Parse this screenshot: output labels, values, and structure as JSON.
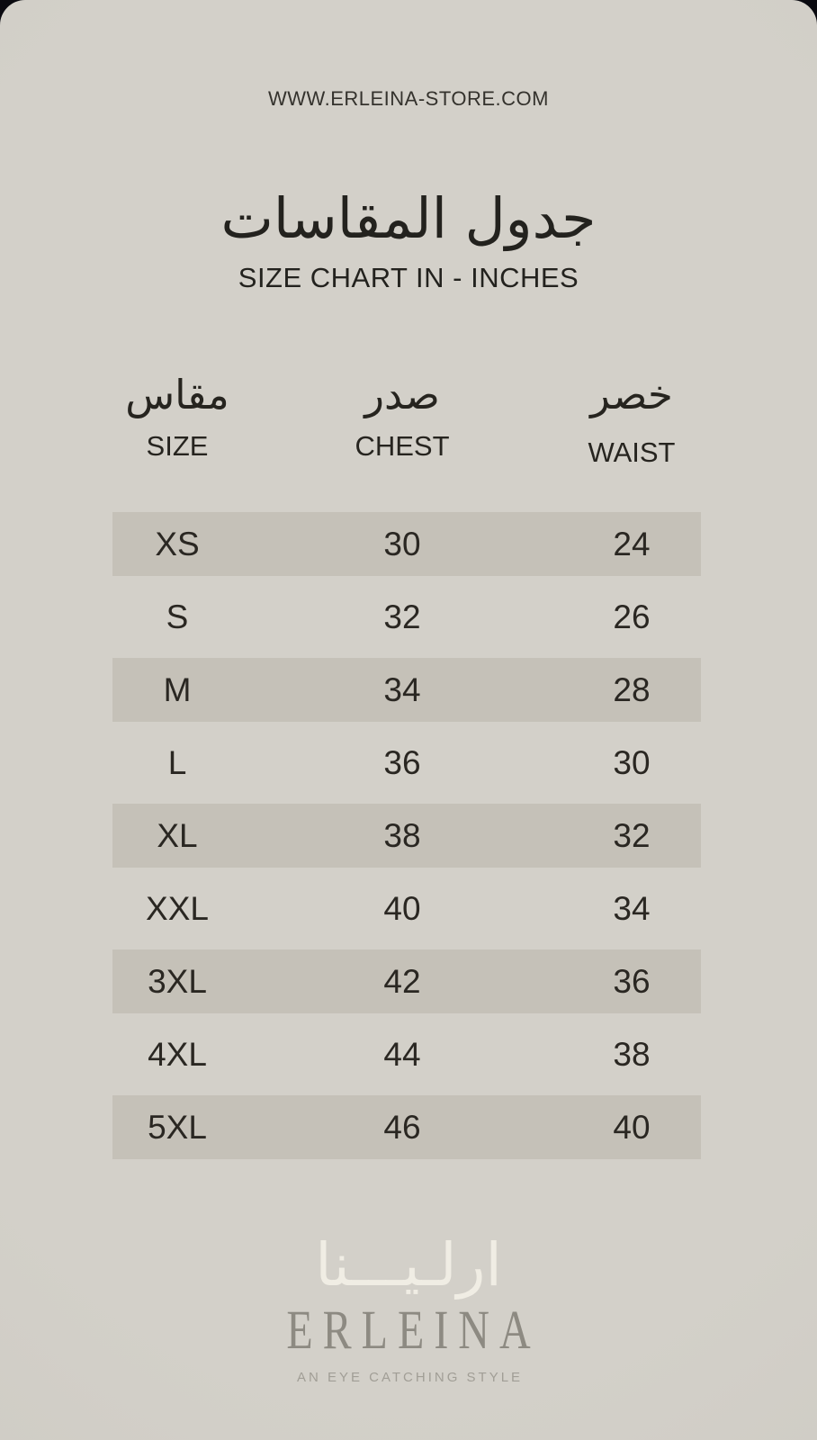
{
  "header": {
    "site_url": "WWW.ERLEINA-STORE.COM"
  },
  "title": {
    "arabic": "جدول المقاسات",
    "english": "SIZE CHART IN - INCHES"
  },
  "table": {
    "columns": [
      {
        "arabic": "مقاس",
        "english": "SIZE"
      },
      {
        "arabic": "صدر",
        "english": "CHEST"
      },
      {
        "arabic": "خصر",
        "english": "WAIST"
      }
    ],
    "rows": [
      {
        "size": "XS",
        "chest": "30",
        "waist": "24"
      },
      {
        "size": "S",
        "chest": "32",
        "waist": "26"
      },
      {
        "size": "M",
        "chest": "34",
        "waist": "28"
      },
      {
        "size": "L",
        "chest": "36",
        "waist": "30"
      },
      {
        "size": "XL",
        "chest": "38",
        "waist": "32"
      },
      {
        "size": "XXL",
        "chest": "40",
        "waist": "34"
      },
      {
        "size": "3XL",
        "chest": "42",
        "waist": "36"
      },
      {
        "size": "4XL",
        "chest": "44",
        "waist": "38"
      },
      {
        "size": "5XL",
        "chest": "46",
        "waist": "40"
      }
    ]
  },
  "footer": {
    "logo_arabic": "ارلـيـــنا",
    "logo_english": "ERLEINA",
    "tagline": "AN EYE CATCHING STYLE"
  },
  "colors": {
    "background": "#d3d0c9",
    "background_edge": "#cac7bf",
    "row_stripe": "#c5c1b8",
    "text_dark": "#2b2924",
    "page_behind": "#0a0a10",
    "logo_arabic_color": "#f0ede4",
    "wordmark_color": "#8d8a82",
    "tagline_color": "#a19e96"
  },
  "chart_data": {
    "type": "table",
    "title": "SIZE CHART IN - INCHES",
    "title_arabic": "جدول المقاسات",
    "unit": "inches",
    "columns": [
      "SIZE",
      "CHEST",
      "WAIST"
    ],
    "columns_arabic": [
      "مقاس",
      "صدر",
      "خصر"
    ],
    "rows": [
      [
        "XS",
        30,
        24
      ],
      [
        "S",
        32,
        26
      ],
      [
        "M",
        34,
        28
      ],
      [
        "L",
        36,
        30
      ],
      [
        "XL",
        38,
        32
      ],
      [
        "XXL",
        40,
        34
      ],
      [
        "3XL",
        42,
        36
      ],
      [
        "4XL",
        44,
        38
      ],
      [
        "5XL",
        46,
        40
      ]
    ]
  }
}
